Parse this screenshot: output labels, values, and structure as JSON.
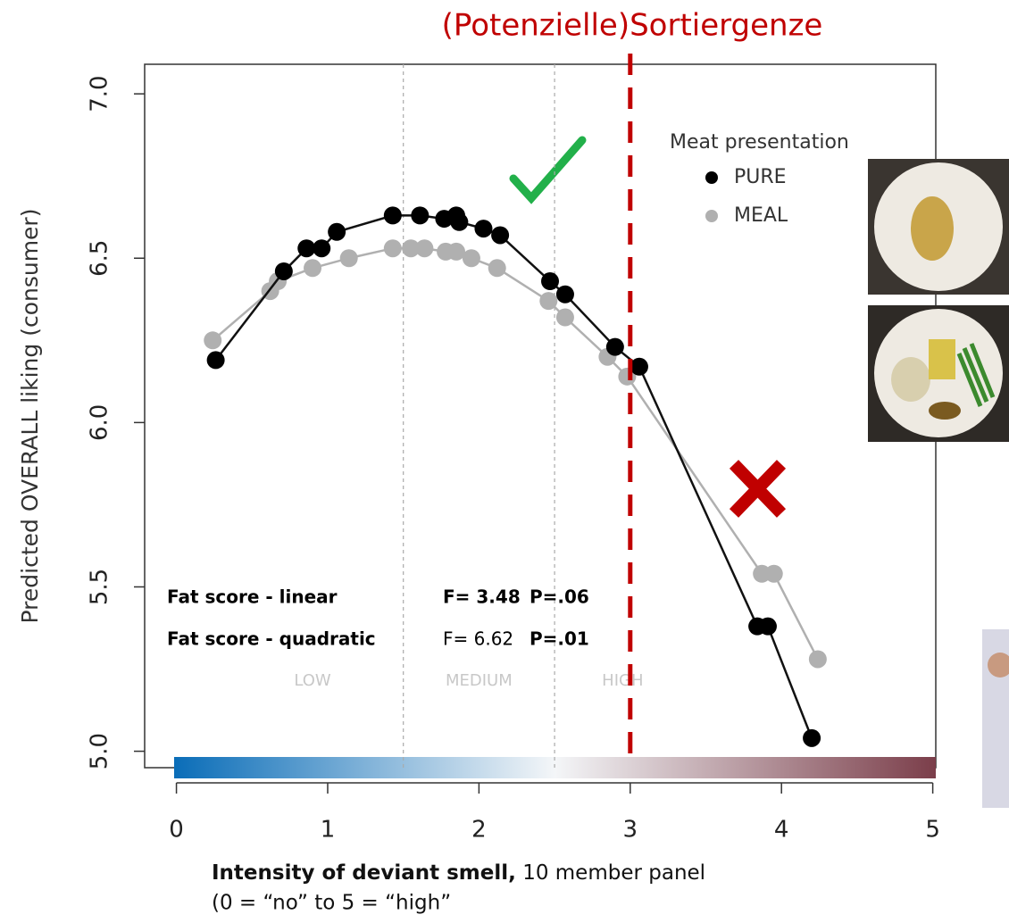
{
  "chart_data": {
    "type": "line",
    "title": "(Potenzielle)Sortiergenze",
    "y_label": "Predicted OVERALL liking (consumer)",
    "x_label_bold": "Intensity of deviant smell,",
    "x_label_rest": " 10 member  panel",
    "x_label_line2": "(0 = “no” to 5 = “high”",
    "legend_title": "Meat presentation",
    "xlim": [
      -0.21,
      5.02
    ],
    "ylim": [
      4.95,
      7.09
    ],
    "xticks": [
      0,
      1,
      2,
      3,
      4,
      5
    ],
    "yticks": [
      {
        "value": 5,
        "label": "5.0"
      },
      {
        "value": 5.5,
        "label": "5.5"
      },
      {
        "value": 6,
        "label": "6.0"
      },
      {
        "value": 6.5,
        "label": "6.5"
      },
      {
        "value": 7,
        "label": "7.0"
      }
    ],
    "region_lines": [
      1.5,
      2.5
    ],
    "region_labels": [
      "LOW",
      "MEDIUM",
      "HIGH"
    ],
    "threshold": 3,
    "threshold_color": "#c00000",
    "series": [
      {
        "name": "PURE",
        "color": "#000000",
        "x": [
          0.26,
          0.71,
          0.86,
          0.96,
          1.06,
          1.43,
          1.61,
          1.77,
          1.85,
          1.87,
          2.03,
          2.14,
          2.47,
          2.57,
          2.9,
          3.06,
          3.84,
          3.91,
          4.2
        ],
        "values": [
          6.19,
          6.46,
          6.53,
          6.53,
          6.58,
          6.63,
          6.63,
          6.62,
          6.63,
          6.61,
          6.59,
          6.57,
          6.43,
          6.39,
          6.23,
          6.17,
          5.38,
          5.38,
          5.04
        ]
      },
      {
        "name": "MEAL",
        "color": "#b0b0b0",
        "x": [
          0.24,
          0.62,
          0.67,
          0.9,
          1.14,
          1.43,
          1.55,
          1.64,
          1.78,
          1.85,
          1.95,
          2.12,
          2.46,
          2.57,
          2.85,
          2.98,
          3.87,
          3.95,
          4.24
        ],
        "values": [
          6.25,
          6.4,
          6.43,
          6.47,
          6.5,
          6.53,
          6.53,
          6.53,
          6.52,
          6.52,
          6.5,
          6.47,
          6.37,
          6.32,
          6.2,
          6.14,
          5.54,
          5.54,
          5.28
        ]
      }
    ],
    "annotations": [
      [
        "Fat score - linear",
        "F= 3.48",
        "P=.06"
      ],
      [
        "Fat score - quadratic",
        "F= 6.62",
        "P=.01"
      ]
    ]
  }
}
